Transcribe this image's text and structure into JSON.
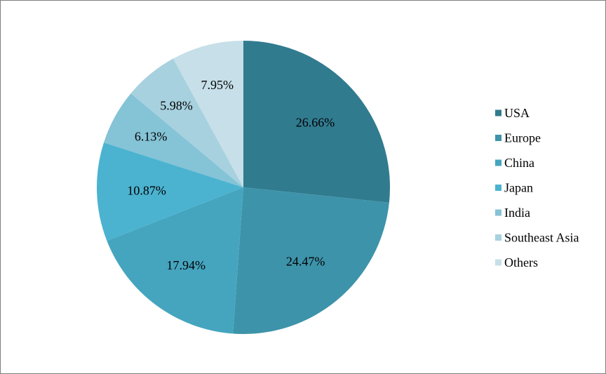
{
  "chart_data": {
    "type": "pie",
    "title": "",
    "legend_position": "right",
    "slices": [
      {
        "name": "USA",
        "value": 26.66,
        "label": "26.66%",
        "color": "#317b8f"
      },
      {
        "name": "Europe",
        "value": 24.47,
        "label": "24.47%",
        "color": "#3d93aa"
      },
      {
        "name": "China",
        "value": 17.94,
        "label": "17.94%",
        "color": "#45a5bf"
      },
      {
        "name": "Japan",
        "value": 10.87,
        "label": "10.87%",
        "color": "#4bb3d0"
      },
      {
        "name": "India",
        "value": 6.13,
        "label": "6.13%",
        "color": "#85c3d6"
      },
      {
        "name": "Southeast Asia",
        "value": 5.98,
        "label": "5.98%",
        "color": "#a7d1df"
      },
      {
        "name": "Others",
        "value": 7.95,
        "label": "7.95%",
        "color": "#c6dfe8"
      }
    ]
  }
}
